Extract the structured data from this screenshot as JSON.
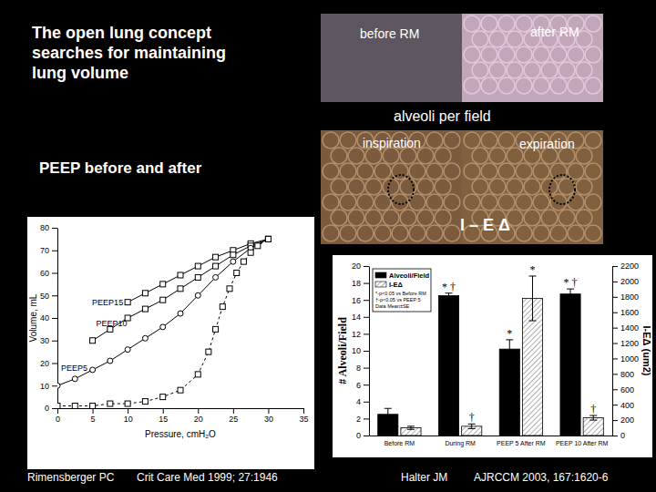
{
  "slide": {
    "title": [
      "The open lung concept",
      "searches for maintaining",
      "lung volume"
    ],
    "subtitle": "PEEP before and after",
    "photo_top": {
      "left_label": "before RM",
      "right_label": "after RM",
      "caption": "alveoli per field"
    },
    "photo_bottom": {
      "left_label": "inspiration",
      "right_label": "expiration",
      "caption": "I – E Δ"
    },
    "citations": [
      [
        "Rimensberger PC",
        "Crit Care Med 1999; 27:1946"
      ],
      [
        "Halter JM",
        "AJRCCM 2003, 167:1620-6"
      ]
    ]
  },
  "chart_data": [
    {
      "type": "line",
      "x_label": "Pressure, cmH₂O",
      "y_label": "Volume, mL",
      "xlim": [
        0,
        35
      ],
      "xticks": [
        0,
        5,
        10,
        15,
        20,
        25,
        30,
        35
      ],
      "ylim": [
        0,
        80
      ],
      "yticks": [
        0,
        10,
        20,
        30,
        40,
        50,
        60,
        70,
        80
      ],
      "grid": false,
      "series": [
        {
          "name": "PEEP15",
          "color": "#000000",
          "marker": "square",
          "line_style": "solid",
          "x": [
            10,
            12.5,
            15,
            17.5,
            20,
            22.5,
            25,
            27.5,
            30
          ],
          "values": [
            47,
            51,
            55,
            59,
            63,
            67,
            70,
            73,
            75
          ]
        },
        {
          "name": "PEEP10",
          "color": "#000000",
          "marker": "square",
          "line_style": "solid",
          "x": [
            5,
            7.5,
            10,
            12.5,
            15,
            17.5,
            20,
            22.5,
            25,
            27.5,
            30
          ],
          "values": [
            30,
            35,
            40,
            44,
            48,
            53,
            58,
            63,
            68,
            72,
            75
          ]
        },
        {
          "name": "PEEP5",
          "color": "#000000",
          "marker": "circle",
          "line_style": "solid",
          "x": [
            0,
            2.5,
            5,
            7.5,
            10,
            12.5,
            15,
            17.5,
            20,
            22.5,
            25,
            27.5,
            30
          ],
          "values": [
            10,
            13,
            17,
            21,
            26,
            31,
            36,
            42,
            50,
            58,
            65,
            71,
            75
          ]
        },
        {
          "color": "#000000",
          "marker": "square",
          "line_style": "dashed",
          "x": [
            0,
            2.5,
            5,
            7.5,
            10,
            12.5,
            15,
            17.5,
            20,
            21.5,
            22.5,
            23.5,
            24.5,
            25.5,
            26.5,
            27.5,
            28.5,
            30
          ],
          "values": [
            1,
            1,
            1,
            2,
            2,
            3,
            5,
            8,
            15,
            25,
            35,
            45,
            53,
            60,
            65,
            69,
            72,
            75
          ]
        }
      ]
    },
    {
      "type": "bar",
      "y_label": "# Alveoli/Field",
      "y2_label": "I-EΔ (um2)",
      "categories": [
        "Before RM",
        "During RM",
        "PEEP 5 After RM",
        "PEEP 10 After RM"
      ],
      "ylim": [
        0,
        20
      ],
      "yticks": [
        0,
        2,
        4,
        6,
        8,
        10,
        12,
        14,
        16,
        18,
        20
      ],
      "y2lim": [
        0,
        2200
      ],
      "y2ticks": [
        0,
        200,
        400,
        600,
        800,
        1000,
        1200,
        1400,
        1600,
        1800,
        2000,
        2200
      ],
      "legend": "top-left",
      "grid": false,
      "series": [
        {
          "name": "Alveoli/Field",
          "color": "#000000",
          "values": [
            2.5,
            16.5,
            10.2,
            16.7
          ],
          "errors": [
            0.7,
            0.3,
            1.1,
            0.6
          ]
        },
        {
          "name": "I-EΔ",
          "color": "#ffffff",
          "axis": "y2",
          "values": [
            100,
            120,
            1780,
            230
          ],
          "errors": [
            20,
            30,
            290,
            30
          ]
        }
      ],
      "annotations": [
        "*-p<0.05 vs Before RM",
        "†-p<0.05 vs PEEP 5",
        "Data Mean±SE"
      ],
      "significance": [
        {
          "series": "Alveoli/Field",
          "category": "During RM",
          "text": "* †"
        },
        {
          "series": "I-EΔ",
          "category": "During RM",
          "text": "†"
        },
        {
          "series": "Alveoli/Field",
          "category": "PEEP 5 After RM",
          "text": "*"
        },
        {
          "series": "I-EΔ",
          "category": "PEEP 5 After RM",
          "text": "*"
        },
        {
          "series": "Alveoli/Field",
          "category": "PEEP 10 After RM",
          "text": "* †"
        },
        {
          "series": "I-EΔ",
          "category": "PEEP 10 After RM",
          "text": "†"
        }
      ]
    }
  ]
}
